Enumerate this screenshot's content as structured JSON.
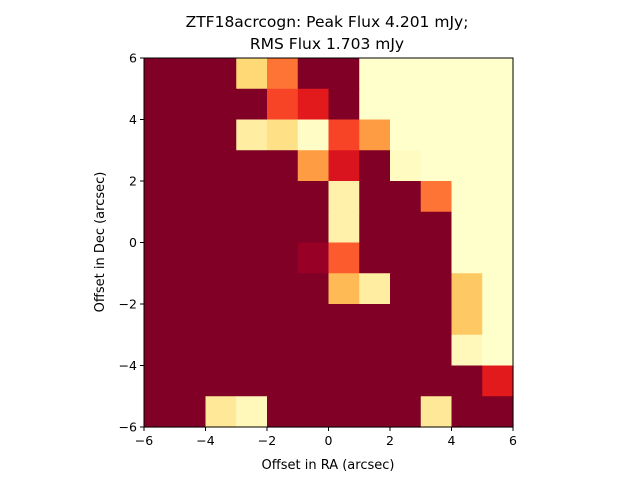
{
  "chart_data": {
    "type": "heatmap",
    "title_line1": "ZTF18acrcogn: Peak Flux 4.201 mJy;",
    "title_line2": "RMS Flux 1.703 mJy",
    "xlabel": "Offset in RA (arcsec)",
    "ylabel": "Offset in Dec (arcsec)",
    "xlim": [
      -6,
      6
    ],
    "ylim": [
      -6,
      6
    ],
    "xticks": [
      -6,
      -4,
      -2,
      0,
      2,
      4,
      6
    ],
    "yticks": [
      -6,
      -4,
      -2,
      0,
      2,
      4,
      6
    ],
    "colormap": "YlOrRd",
    "color_range": [
      0,
      1
    ],
    "grid_rows_top_to_bottom": [
      [
        0.0,
        0.0,
        0.0,
        0.75,
        0.45,
        0.0,
        0.0,
        1.0,
        1.0,
        1.0,
        1.0,
        1.0
      ],
      [
        0.0,
        0.0,
        0.0,
        0.0,
        0.35,
        0.25,
        0.0,
        1.0,
        1.0,
        1.0,
        1.0,
        1.0
      ],
      [
        0.0,
        0.0,
        0.0,
        0.88,
        0.8,
        0.98,
        0.35,
        0.55,
        1.0,
        1.0,
        1.0,
        1.0
      ],
      [
        0.0,
        0.0,
        0.0,
        0.0,
        0.0,
        0.55,
        0.22,
        0.0,
        0.97,
        1.0,
        1.0,
        1.0
      ],
      [
        0.0,
        0.0,
        0.0,
        0.0,
        0.0,
        0.0,
        0.9,
        0.0,
        0.0,
        0.45,
        1.0,
        1.0
      ],
      [
        0.0,
        0.0,
        0.0,
        0.0,
        0.0,
        0.0,
        0.9,
        0.0,
        0.0,
        0.0,
        1.0,
        1.0
      ],
      [
        0.0,
        0.0,
        0.0,
        0.0,
        0.0,
        0.05,
        0.4,
        0.0,
        0.0,
        0.0,
        1.0,
        1.0
      ],
      [
        0.0,
        0.0,
        0.0,
        0.0,
        0.0,
        0.0,
        0.65,
        0.88,
        0.0,
        0.0,
        0.7,
        1.0
      ],
      [
        0.0,
        0.0,
        0.0,
        0.0,
        0.0,
        0.0,
        0.0,
        0.0,
        0.0,
        0.0,
        0.7,
        1.0
      ],
      [
        0.0,
        0.0,
        0.0,
        0.0,
        0.0,
        0.0,
        0.0,
        0.0,
        0.0,
        0.0,
        0.95,
        1.0
      ],
      [
        0.0,
        0.0,
        0.0,
        0.0,
        0.0,
        0.0,
        0.0,
        0.0,
        0.0,
        0.0,
        0.0,
        0.25
      ],
      [
        0.0,
        0.0,
        0.85,
        0.95,
        0.0,
        0.0,
        0.0,
        0.0,
        0.0,
        0.85,
        0.0,
        0.0
      ]
    ]
  }
}
